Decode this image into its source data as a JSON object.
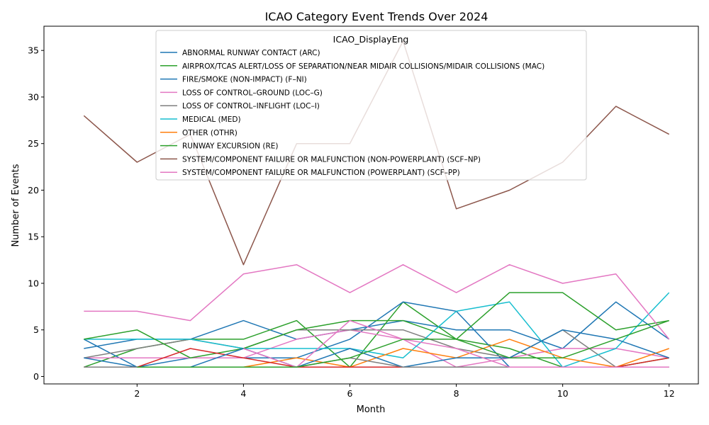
{
  "chart_data": {
    "type": "line",
    "title": "ICAO Category Event Trends Over 2024",
    "xlabel": "Month",
    "ylabel": "Number of Events",
    "xlim": [
      0.25,
      12.55
    ],
    "ylim": [
      -0.8,
      37.6
    ],
    "xticks": [
      2,
      4,
      6,
      8,
      10,
      12
    ],
    "yticks": [
      0,
      5,
      10,
      15,
      20,
      25,
      30,
      35
    ],
    "grid": false,
    "legend": {
      "title": "ICAO_DisplayEng",
      "placement": "top-center"
    },
    "series": [
      {
        "name": "ABNORMAL RUNWAY CONTACT (ARC)",
        "color": "#1f77b4",
        "x": [
          1,
          2,
          3,
          4,
          5,
          6,
          7,
          8,
          9,
          10,
          11,
          12
        ],
        "y": [
          3,
          4,
          4,
          6,
          4,
          5,
          6,
          5,
          5,
          3,
          8,
          4
        ]
      },
      {
        "name": "AIRPROX/TCAS ALERT/LOSS OF SEPARATION/NEAR MIDAIR COLLISIONS/MIDAIR COLLISIONS (MAC)",
        "color": "#2ca02c",
        "x": [
          1,
          2,
          3,
          4,
          5,
          6,
          7,
          8,
          9,
          10,
          11,
          12
        ],
        "y": [
          1,
          3,
          4,
          4,
          6,
          1,
          8,
          4,
          3,
          1,
          1,
          2
        ]
      },
      {
        "name": "FIRE/SMOKE (NON-IMPACT) (F–NI)",
        "color": "#1f77b4",
        "x": [
          1,
          2,
          3,
          4,
          5,
          6,
          7,
          8,
          9
        ],
        "y": [
          4,
          1,
          2,
          2,
          2,
          4,
          8,
          7,
          1
        ]
      },
      {
        "name": "LOSS OF CONTROL–GROUND (LOC–G)",
        "color": "#e377c2",
        "x": [
          1,
          2,
          3,
          4,
          5,
          6,
          7,
          8,
          9,
          10,
          11,
          12
        ],
        "y": [
          2,
          2,
          2,
          2,
          4,
          5,
          4,
          1,
          2,
          3,
          3,
          2
        ]
      },
      {
        "name": "LOSS OF CONTROL–INFLIGHT (LOC–I)",
        "color": "#7f7f7f",
        "x": [
          1,
          2,
          3,
          4,
          5,
          6,
          7,
          8,
          9,
          10,
          11,
          12
        ],
        "y": [
          2,
          3,
          4,
          3,
          5,
          5,
          5,
          3,
          2,
          5,
          1,
          1
        ]
      },
      {
        "name": "MEDICAL (MED)",
        "color": "#17becf",
        "x": [
          1,
          2,
          3,
          4,
          5,
          6,
          7,
          8,
          9,
          10,
          11,
          12
        ],
        "y": [
          4,
          4,
          4,
          3,
          3,
          3,
          2,
          7,
          8,
          1,
          3,
          9
        ]
      },
      {
        "name": "OTHER (OTHR)",
        "color": "#ff7f0e",
        "x": [
          3,
          4,
          5,
          6,
          7,
          8,
          9,
          10,
          11,
          12
        ],
        "y": [
          1,
          1,
          2,
          1,
          3,
          2,
          4,
          2,
          1,
          3
        ]
      },
      {
        "name": "RUNWAY EXCURSION (RE)",
        "color": "#2ca02c",
        "x": [
          1,
          2,
          3,
          4,
          5,
          6,
          7,
          8,
          9,
          10,
          11,
          12
        ],
        "y": [
          4,
          5,
          2,
          3,
          5,
          6,
          6,
          4,
          9,
          9,
          5,
          6
        ]
      },
      {
        "name": "SYSTEM/COMPONENT FAILURE OR MALFUNCTION (NON-POWERPLANT) (SCF–NP)",
        "color": "#8c564b",
        "x": [
          1,
          2,
          3,
          4,
          5,
          6,
          7,
          8,
          9,
          10,
          11,
          12
        ],
        "y": [
          28,
          23,
          26,
          12,
          25,
          25,
          36,
          18,
          20,
          23,
          29,
          26
        ]
      },
      {
        "name": "SYSTEM/COMPONENT FAILURE OR MALFUNCTION (POWERPLANT) (SCF–PP)",
        "color": "#e377c2",
        "x": [
          1,
          2,
          3,
          4,
          5,
          6,
          7,
          8,
          9,
          10,
          11,
          12
        ],
        "y": [
          7,
          7,
          6,
          11,
          12,
          9,
          12,
          9,
          12,
          10,
          11,
          4
        ]
      },
      {
        "name": "",
        "color": "#d62728",
        "x": [
          1,
          2,
          3,
          4,
          5,
          6,
          7,
          8,
          9,
          10,
          11,
          12
        ],
        "y": [
          1,
          1,
          3,
          2,
          1,
          1,
          1,
          1,
          1,
          1,
          1,
          2
        ]
      },
      {
        "name": "",
        "color": "#1f77b4",
        "x": [
          1,
          2,
          3,
          4,
          5,
          6,
          7,
          8,
          9,
          10,
          11,
          12
        ],
        "y": [
          2,
          1,
          1,
          3,
          1,
          3,
          1,
          2,
          2,
          5,
          4,
          2
        ]
      },
      {
        "name": "",
        "color": "#7f7f7f",
        "x": [
          1,
          2,
          3,
          4,
          5,
          6,
          7,
          8,
          9,
          10,
          11,
          12
        ],
        "y": [
          1,
          1,
          1,
          1,
          1,
          2,
          1,
          1,
          1,
          1,
          1,
          1
        ]
      },
      {
        "name": "",
        "color": "#e377c2",
        "x": [
          4,
          5,
          6,
          7,
          8,
          9,
          10,
          11,
          12
        ],
        "y": [
          3,
          1,
          6,
          4,
          3,
          1,
          1,
          1,
          1
        ]
      },
      {
        "name": "",
        "color": "#2ca02c",
        "x": [
          2,
          3,
          4,
          5,
          6,
          7,
          8,
          9,
          10,
          11,
          12
        ],
        "y": [
          1,
          1,
          1,
          1,
          2,
          4,
          4,
          2,
          2,
          4,
          6
        ]
      }
    ]
  }
}
